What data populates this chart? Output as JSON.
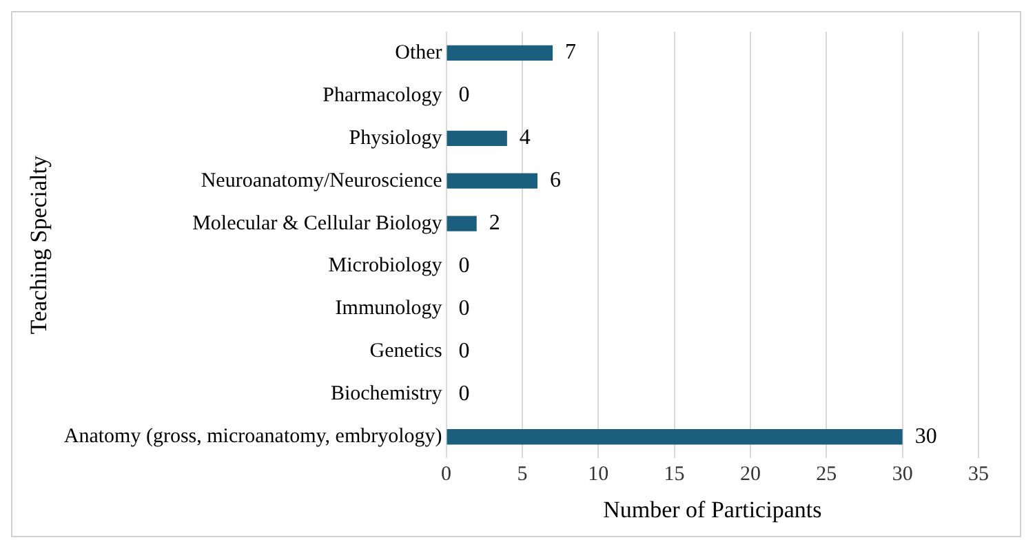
{
  "chart_data": {
    "type": "bar",
    "orientation": "horizontal",
    "xlabel": "Number of Participants",
    "ylabel": "Teaching Specialty",
    "categories": [
      "Other",
      "Pharmacology",
      "Physiology",
      "Neuroanatomy/Neuroscience",
      "Molecular & Cellular Biology",
      "Microbiology",
      "Immunology",
      "Genetics",
      "Biochemistry",
      "Anatomy (gross, microanatomy, embryology)"
    ],
    "values": [
      7,
      0,
      4,
      6,
      2,
      0,
      0,
      0,
      0,
      30
    ],
    "color": "#1b5e7e",
    "xlim": [
      0,
      35
    ],
    "xticks": [
      0,
      5,
      10,
      15,
      20,
      25,
      30,
      35
    ],
    "grid": "x",
    "data_labels": true,
    "legend": false
  }
}
